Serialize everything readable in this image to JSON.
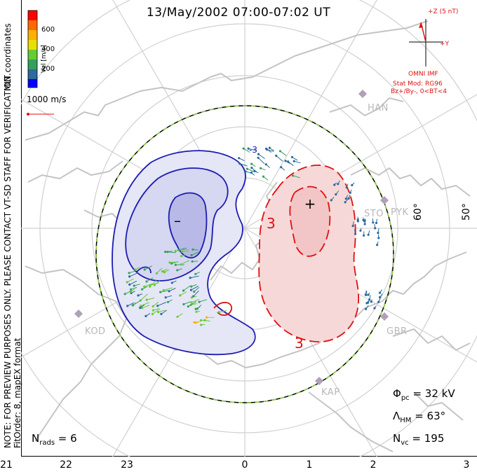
{
  "title": "13/May/2002 07:00-07:02 UT",
  "side_note_1": "MLT coordinates",
  "side_note_2": "NOTE: FOR PREVIEW PURPOSES ONLY. PLEASE CONTACT VT-SD STAFF FOR VERIFICATION.",
  "side_note_3": "FitOrder: 8, mapEX format",
  "colorbar": {
    "label": "Vel [m/s]",
    "ticks": [
      "600",
      "400",
      "200"
    ],
    "colors": [
      "#ff0000",
      "#ff6a00",
      "#ffb000",
      "#e8e000",
      "#66cc33",
      "#33a060",
      "#2c6a9c",
      "#0000ff"
    ]
  },
  "velocity_scale_label": "1000 m/s",
  "imf": {
    "bz_label": "+Z (5 nT)",
    "by_label": "+Y",
    "source": "OMNI IMF",
    "model": "Stat Mod: RG96",
    "condition": "Bz+/By-, 0<BT<4"
  },
  "stations": [
    "HAN",
    "STO",
    "PYK",
    "GBR",
    "KAP",
    "KOD"
  ],
  "latitude_labels": [
    "60°",
    "50°"
  ],
  "contour_labels": [
    "3",
    "3",
    "-3"
  ],
  "symbols": {
    "min": "–",
    "max": "+"
  },
  "stats": {
    "phi_pc_label": "Φ",
    "phi_pc_sub": "pc",
    "phi_pc_value": " = 32 kV",
    "lambda_hm_label": "Λ",
    "lambda_hm_sub": "HM",
    "lambda_hm_value": " = 63°",
    "n_vc_label": "N",
    "n_vc_sub": "vc",
    "n_vc_value": " = 195",
    "n_rads_label": "N",
    "n_rads_sub": "rads",
    "n_rads_value": " = 6"
  },
  "mlt_ticks": [
    "21",
    "22",
    "23",
    "0",
    "1",
    "2",
    "3"
  ]
}
